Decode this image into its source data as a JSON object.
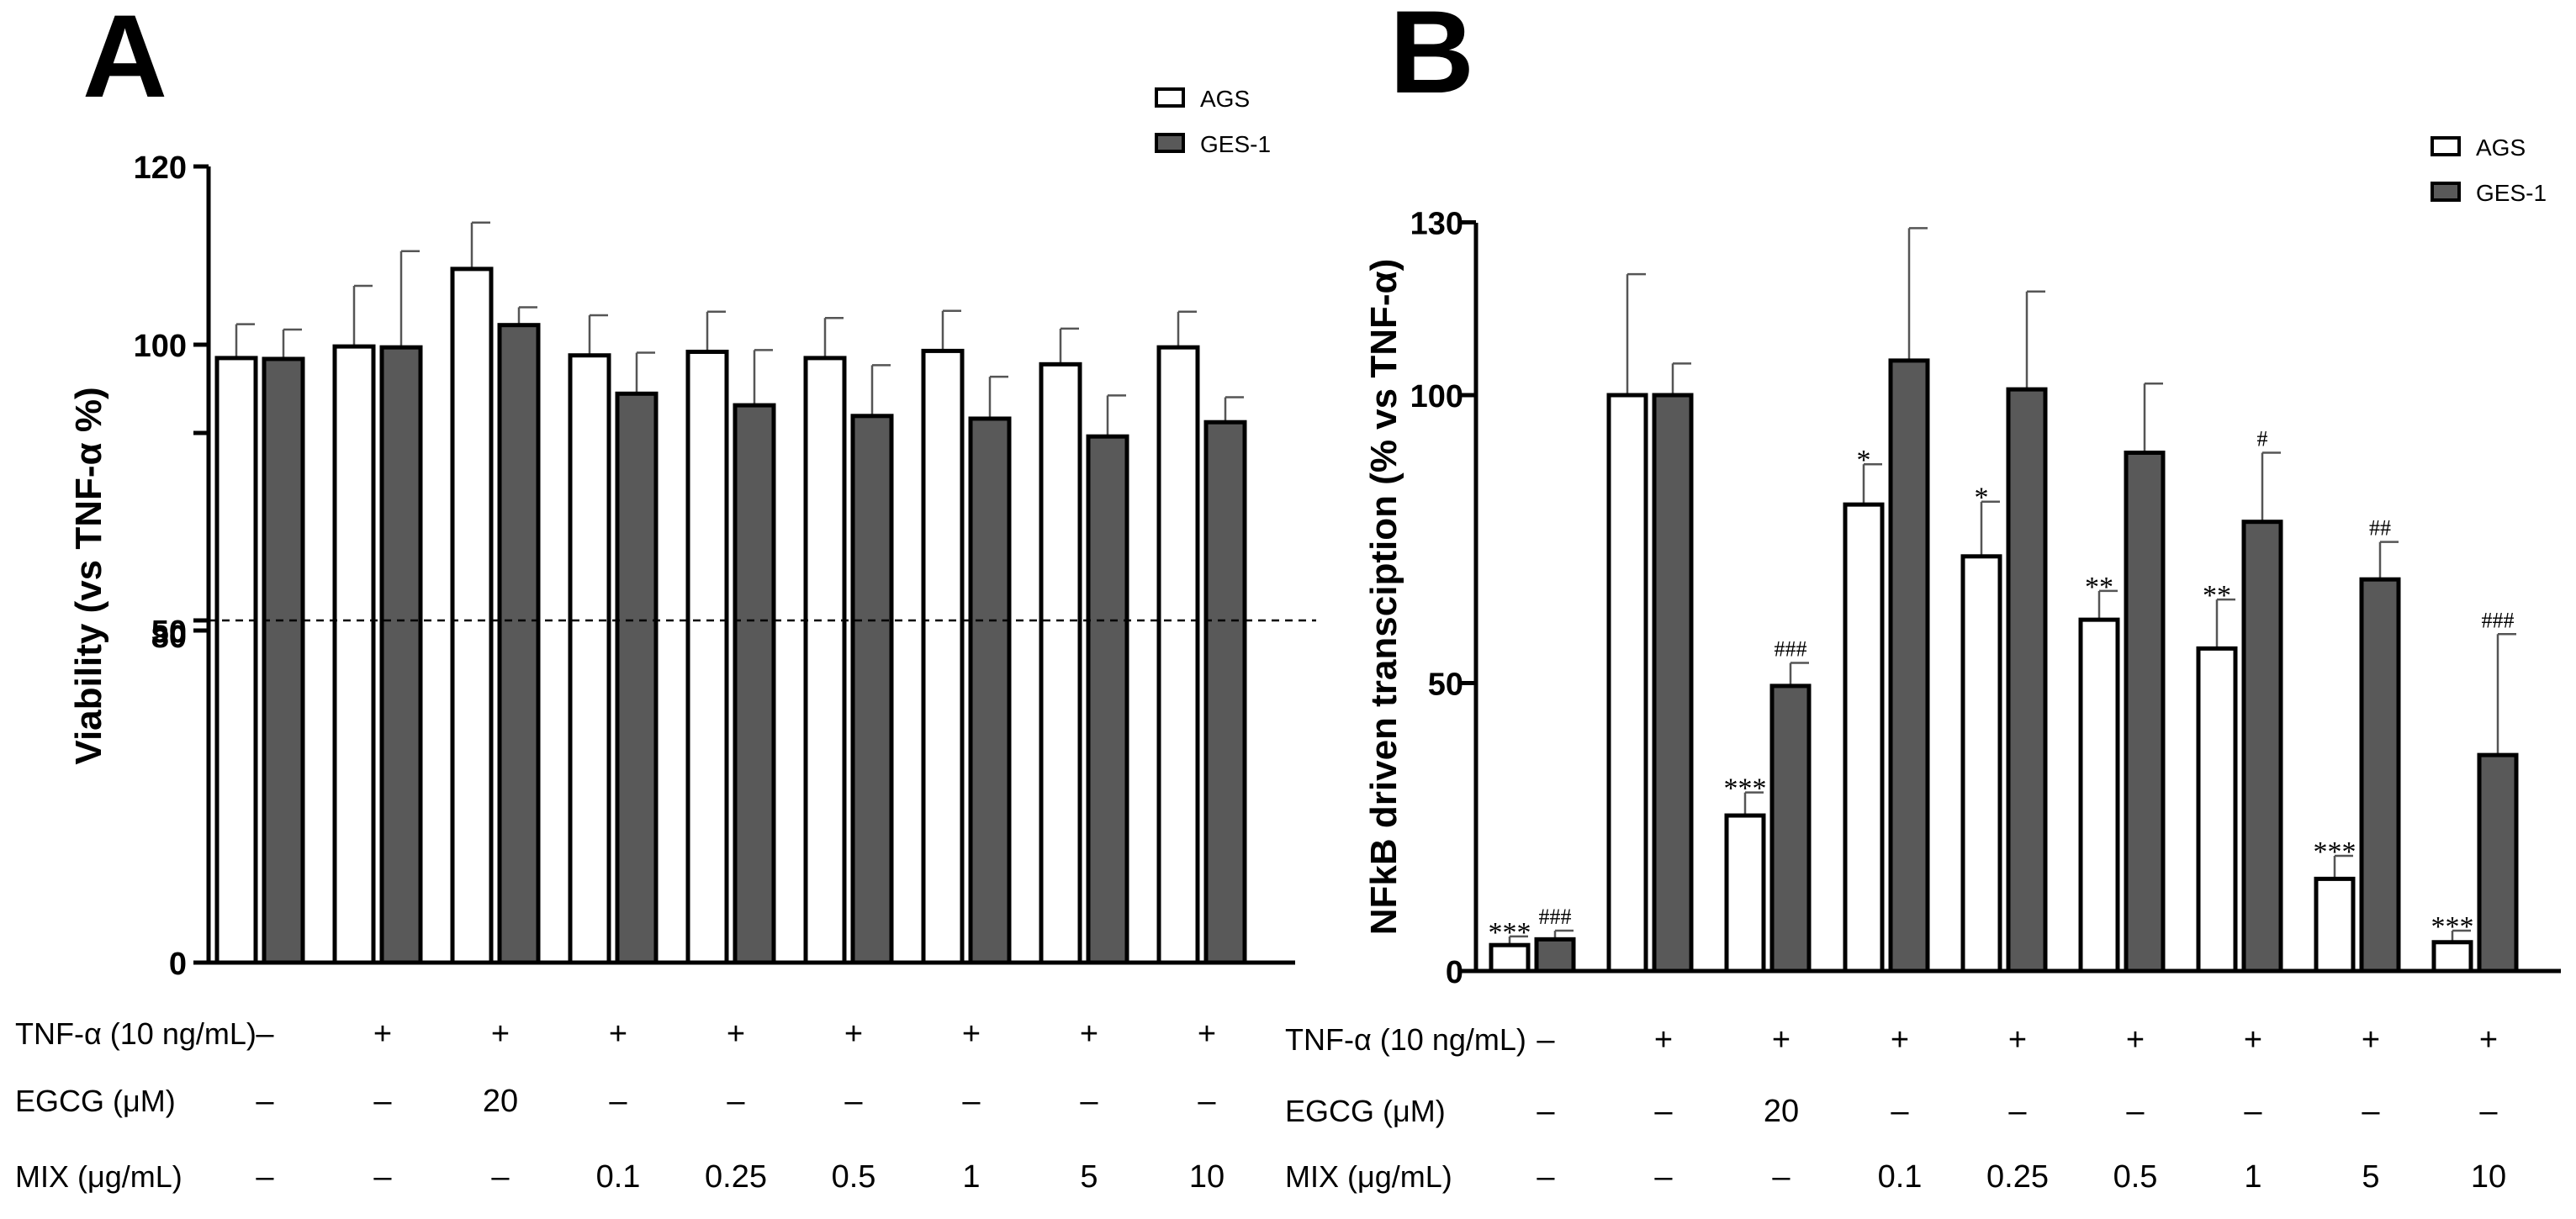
{
  "colors": {
    "ags_fill": "#ffffff",
    "ges_fill": "#595959",
    "axis": "#000000",
    "error_bar": "#555555"
  },
  "chart_data": [
    {
      "panel_label": "A",
      "type": "bar",
      "ylabel": "Viability (vs TNF-α %)",
      "ylim": [
        0,
        120
      ],
      "y_axis_break": [
        50,
        80
      ],
      "yticks": [
        {
          "value": 0,
          "label": "0"
        },
        {
          "value": 50,
          "label": "50"
        },
        {
          "value": 80,
          "label": "80"
        },
        {
          "value": 100,
          "label": "100"
        },
        {
          "value": 120,
          "label": "120"
        }
      ],
      "reference_line": 80,
      "legend": [
        {
          "name": "AGS",
          "swatch": "ags_fill"
        },
        {
          "name": "GES-1",
          "swatch": "ges_fill"
        }
      ],
      "series": [
        {
          "name": "AGS",
          "values": [
            98.5,
            99.8,
            108.5,
            98.8,
            99.2,
            98.5,
            99.3,
            97.8,
            99.7
          ],
          "errors": [
            3.8,
            6.8,
            5.2,
            4.5,
            4.5,
            4.5,
            4.5,
            4.0,
            4.0
          ]
        },
        {
          "name": "GES-1",
          "values": [
            98.4,
            99.7,
            102.2,
            94.5,
            93.2,
            92.0,
            91.7,
            89.7,
            91.3
          ],
          "errors": [
            3.3,
            10.8,
            2.0,
            4.6,
            6.2,
            5.7,
            4.7,
            4.6,
            2.8
          ]
        }
      ],
      "ags_marks": [
        "",
        "",
        "",
        "",
        "",
        "",
        "",
        "",
        ""
      ],
      "ges_marks": [
        "",
        "",
        "",
        "",
        "",
        "",
        "",
        "",
        ""
      ],
      "treatment_rows": [
        {
          "label": "TNF-α (10 ng/mL)",
          "values": [
            "–",
            "+",
            "+",
            "+",
            "+",
            "+",
            "+",
            "+",
            "+"
          ]
        },
        {
          "label": "EGCG (μM)",
          "values": [
            "–",
            "–",
            "20",
            "–",
            "–",
            "–",
            "–",
            "–",
            "–"
          ]
        },
        {
          "label": "MIX (μg/mL)",
          "values": [
            "–",
            "–",
            "–",
            "0.1",
            "0.25",
            "0.5",
            "1",
            "5",
            "10"
          ]
        }
      ]
    },
    {
      "panel_label": "B",
      "type": "bar",
      "ylabel": "NFkB driven transciption (% vs TNF-α)",
      "ylim": [
        0,
        130
      ],
      "yticks": [
        {
          "value": 0,
          "label": "0"
        },
        {
          "value": 50,
          "label": "50"
        },
        {
          "value": 100,
          "label": "100"
        },
        {
          "value": 130,
          "label": "130"
        }
      ],
      "legend": [
        {
          "name": "AGS",
          "swatch": "ags_fill"
        },
        {
          "name": "GES-1",
          "swatch": "ges_fill"
        }
      ],
      "series": [
        {
          "name": "AGS",
          "values": [
            4.5,
            100,
            27,
            81,
            72,
            61,
            56,
            16,
            5
          ],
          "errors": [
            1.5,
            21,
            4,
            7,
            9.5,
            5,
            8.5,
            4,
            2
          ]
        },
        {
          "name": "GES-1",
          "values": [
            5.5,
            100,
            49.5,
            106,
            101,
            90,
            78,
            68,
            37.5
          ],
          "errors": [
            1.5,
            5.5,
            4,
            23,
            17,
            12,
            12,
            6.5,
            21
          ]
        }
      ],
      "ags_marks": [
        "***",
        "",
        "***",
        "*",
        "*",
        "**",
        "**",
        "***",
        "***"
      ],
      "ges_marks": [
        "###",
        "",
        "###",
        "",
        "",
        "",
        "#",
        "##",
        "###"
      ],
      "treatment_rows": [
        {
          "label": "TNF-α (10 ng/mL)",
          "values": [
            "–",
            "+",
            "+",
            "+",
            "+",
            "+",
            "+",
            "+",
            "+"
          ]
        },
        {
          "label": "EGCG (μM)",
          "values": [
            "–",
            "–",
            "20",
            "–",
            "–",
            "–",
            "–",
            "–",
            "–"
          ]
        },
        {
          "label": "MIX (μg/mL)",
          "values": [
            "–",
            "–",
            "–",
            "0.1",
            "0.25",
            "0.5",
            "1",
            "5",
            "10"
          ]
        }
      ]
    }
  ]
}
